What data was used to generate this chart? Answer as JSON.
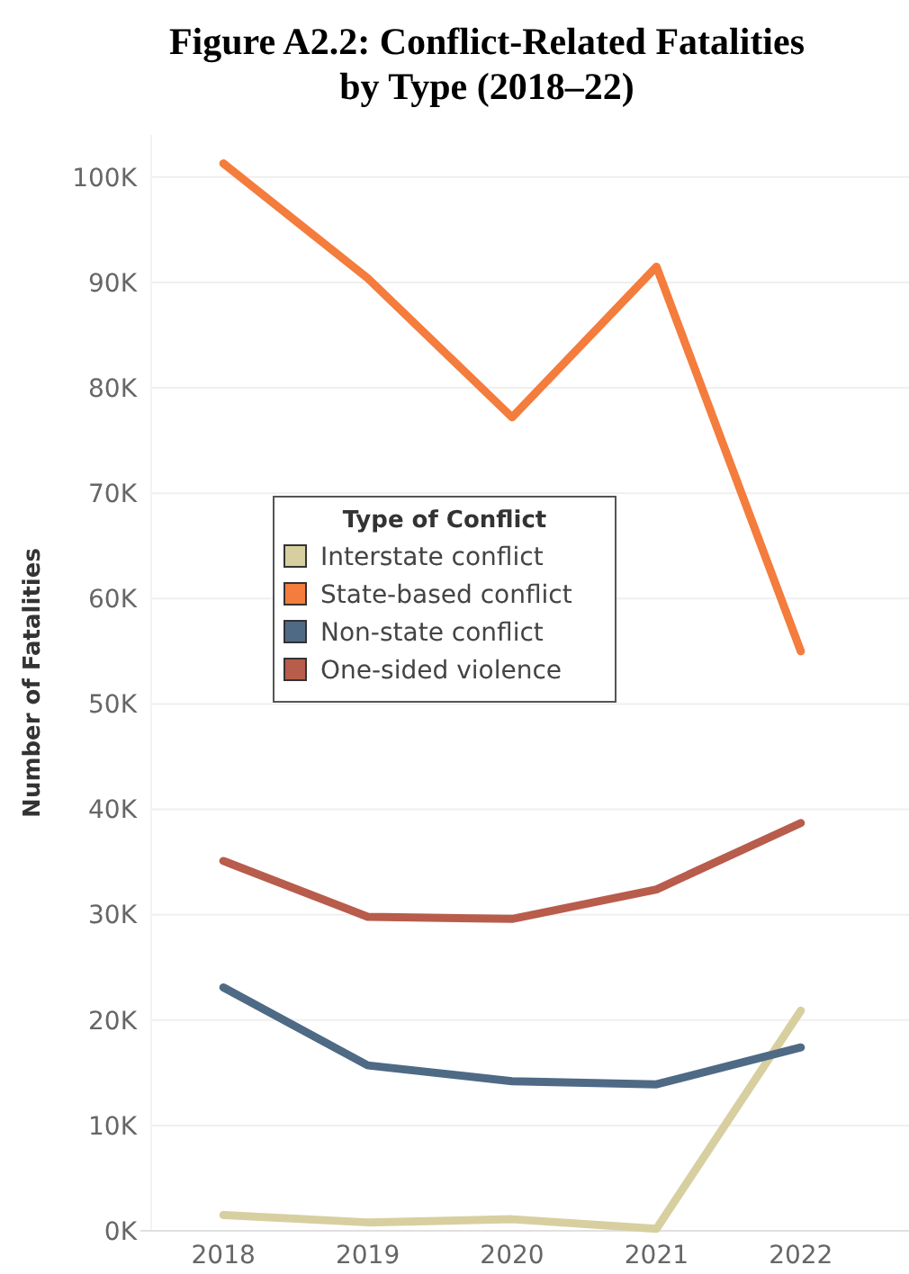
{
  "chart_data": {
    "type": "line",
    "title": "Figure A2.2: Conflict-Related Fatalities by Type (2018–22)",
    "ylabel": "Number of Fatalities",
    "legend_title": "Type of Conflict",
    "categories": [
      "2018",
      "2019",
      "2020",
      "2021",
      "2022"
    ],
    "series": [
      {
        "name": "Interstate conflict",
        "color": "#d8cfa0",
        "values": [
          1500,
          800,
          1100,
          200,
          20900
        ]
      },
      {
        "name": "State-based conflict",
        "color": "#f47c3c",
        "values": [
          101300,
          90400,
          77200,
          91500,
          55000
        ]
      },
      {
        "name": "Non-state conflict",
        "color": "#4e6a85",
        "values": [
          23100,
          15700,
          14200,
          13900,
          17400
        ]
      },
      {
        "name": "One-sided violence",
        "color": "#b85c4c",
        "values": [
          35100,
          29800,
          29600,
          32400,
          38700
        ]
      }
    ],
    "ylim": [
      0,
      104000
    ],
    "yticks": [
      {
        "value": 0,
        "label": "0K"
      },
      {
        "value": 10000,
        "label": "10K"
      },
      {
        "value": 20000,
        "label": "20K"
      },
      {
        "value": 30000,
        "label": "30K"
      },
      {
        "value": 40000,
        "label": "40K"
      },
      {
        "value": 50000,
        "label": "50K"
      },
      {
        "value": 60000,
        "label": "60K"
      },
      {
        "value": 70000,
        "label": "70K"
      },
      {
        "value": 80000,
        "label": "80K"
      },
      {
        "value": 90000,
        "label": "90K"
      },
      {
        "value": 100000,
        "label": "100K"
      }
    ],
    "grid": "y",
    "legend": "left",
    "marker": "none",
    "line_style": "solid"
  }
}
